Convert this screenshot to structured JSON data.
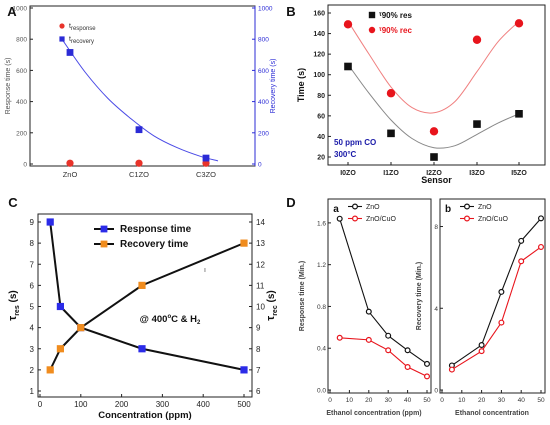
{
  "panel_labels": [
    "A",
    "B",
    "C",
    "D"
  ],
  "chart_data": [
    {
      "panel": "A",
      "type": "scatter",
      "categories": [
        "ZnO",
        "C1ZO",
        "C3ZO"
      ],
      "ylabel": "Response time (s)",
      "y2label": "Recovery time (s)",
      "ylim": [
        0,
        1000
      ],
      "y2lim": [
        0,
        1000
      ],
      "yticks": [
        0,
        200,
        400,
        600,
        800,
        1000
      ],
      "legend": [
        {
          "prefix": "t",
          "sub": "response"
        },
        {
          "prefix": "t",
          "sub": "recovery"
        }
      ],
      "legend_position": "top-left",
      "series": [
        {
          "axis": "left",
          "color": "#e8332a",
          "marker": "circle",
          "values": [
            5,
            5,
            5
          ]
        },
        {
          "axis": "right",
          "color": "#2b2bd6",
          "marker": "square",
          "values": [
            715,
            220,
            38
          ]
        }
      ],
      "fit_curve": {
        "color": "#4a4ae6",
        "values": [
          800,
          590,
          420,
          290,
          180,
          105,
          50,
          20
        ]
      },
      "grid": false
    },
    {
      "panel": "B",
      "type": "scatter",
      "categories": [
        "I0ZO",
        "I1ZO",
        "I2ZO",
        "I3ZO",
        "I5ZO"
      ],
      "xlabel": "Sensor",
      "ylabel": "Time (s)",
      "ylim": [
        20,
        160
      ],
      "yticks": [
        20,
        40,
        60,
        80,
        100,
        120,
        140,
        160
      ],
      "annotation": [
        "50 ppm CO",
        "300°C"
      ],
      "legend": [
        {
          "prefix": "τ",
          "text": "90% res"
        },
        {
          "prefix": "τ",
          "text": "90% rec"
        }
      ],
      "legend_position": "top-left",
      "series": [
        {
          "color": "#111111",
          "marker": "square",
          "values": [
            108,
            43,
            20,
            52,
            62
          ]
        },
        {
          "color": "#e8141c",
          "marker": "circle",
          "values": [
            149,
            82,
            45,
            134,
            150
          ]
        }
      ],
      "fit_curves": [
        {
          "color": "#888888",
          "values": [
            110,
            82,
            56,
            38,
            29,
            31,
            42,
            53,
            62
          ]
        },
        {
          "color": "#f08080",
          "values": [
            152,
            120,
            88,
            68,
            63,
            74,
            103,
            132,
            152
          ]
        }
      ],
      "grid": false
    },
    {
      "panel": "C",
      "type": "line",
      "xlabel": "Concentration (ppm)",
      "ylabel_main": "τ",
      "ylabel_sub": "res",
      "ylabel_unit": "(s)",
      "y2label_main": "τ",
      "y2label_sub": "rec",
      "y2label_unit": "(s)",
      "xlim": [
        0,
        500
      ],
      "xticks": [
        0,
        100,
        200,
        300,
        400,
        500
      ],
      "ylim": [
        1,
        9
      ],
      "yticks": [
        1,
        2,
        3,
        4,
        5,
        6,
        7,
        8,
        9
      ],
      "y2lim": [
        6,
        14
      ],
      "y2ticks": [
        6,
        7,
        8,
        9,
        10,
        11,
        12,
        13,
        14
      ],
      "annotation": {
        "main": "@ 400",
        "sup": "o",
        "mid": "C & H",
        "sub": "2"
      },
      "legend": [
        "Response time",
        "Recovery time"
      ],
      "legend_position": "top-right",
      "series": [
        {
          "name": "Response time",
          "axis": "left",
          "color": "#2b2be8",
          "marker": "square",
          "x": [
            25,
            50,
            100,
            250,
            500
          ],
          "y": [
            9,
            5,
            4,
            3,
            2
          ]
        },
        {
          "name": "Recovery time",
          "axis": "right",
          "color": "#f08c1e",
          "marker": "square",
          "x": [
            25,
            50,
            100,
            250,
            500
          ],
          "y": [
            7,
            8,
            9,
            11,
            13
          ]
        }
      ],
      "grid": false
    },
    {
      "panel": "D",
      "subpanels": [
        {
          "label": "a",
          "type": "line",
          "xlabel": "Ethanol concentration (ppm)",
          "ylabel": "Response time (Min.)",
          "xlim": [
            0,
            50
          ],
          "xticks": [
            0,
            10,
            20,
            30,
            40,
            50
          ],
          "ylim": [
            0,
            1.8
          ],
          "yticks": [
            0.0,
            0.4,
            0.8,
            1.2,
            1.6
          ],
          "legend": [
            "ZnO",
            "ZnO/CuO"
          ],
          "series": [
            {
              "name": "ZnO",
              "color": "#111111",
              "x": [
                5,
                20,
                30,
                40,
                50
              ],
              "y": [
                1.64,
                0.75,
                0.52,
                0.38,
                0.25
              ]
            },
            {
              "name": "ZnO/CuO",
              "color": "#e8141c",
              "x": [
                5,
                20,
                30,
                40,
                50
              ],
              "y": [
                0.5,
                0.48,
                0.38,
                0.22,
                0.13
              ]
            }
          ]
        },
        {
          "label": "b",
          "type": "line",
          "xlabel": "Ethanol concentration",
          "ylabel": "Recovery time (Min.)",
          "xlim": [
            0,
            50
          ],
          "xticks": [
            0,
            10,
            20,
            30,
            40,
            50
          ],
          "ylim": [
            0,
            9.2
          ],
          "yticks": [
            0,
            4,
            8
          ],
          "legend": [
            "ZnO",
            "ZnO/CuO"
          ],
          "series": [
            {
              "name": "ZnO",
              "color": "#111111",
              "x": [
                5,
                20,
                30,
                40,
                50
              ],
              "y": [
                1.2,
                2.2,
                4.8,
                7.3,
                8.4
              ]
            },
            {
              "name": "ZnO/CuO",
              "color": "#e8141c",
              "x": [
                5,
                20,
                30,
                40,
                50
              ],
              "y": [
                1.0,
                1.9,
                3.3,
                6.3,
                7.0
              ]
            }
          ]
        }
      ]
    }
  ]
}
